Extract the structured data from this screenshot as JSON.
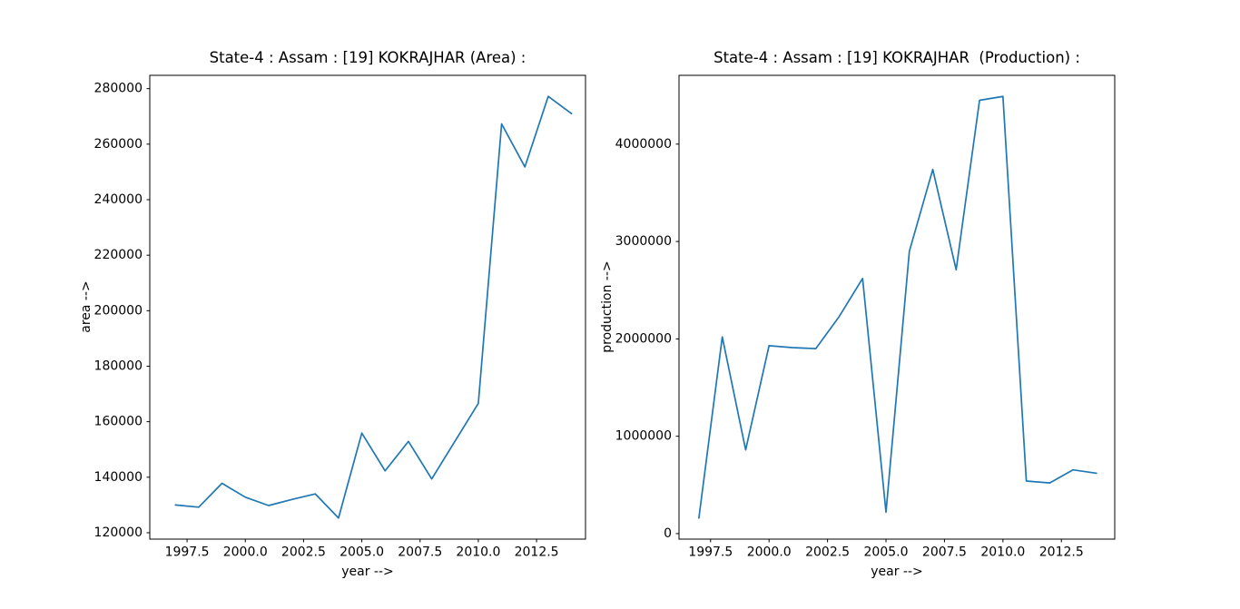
{
  "figure": {
    "background_color": "#ffffff",
    "text_color": "#000000",
    "spine_color": "#000000"
  },
  "chart_data": [
    {
      "type": "line",
      "title": "State-4 : Assam : [19] KOKRAJHAR (Area) :",
      "xlabel": "year -->",
      "ylabel": "area -->",
      "color": "#1f77b4",
      "grid": false,
      "legend": null,
      "x": [
        1997,
        1998,
        1999,
        2000,
        2001,
        2002,
        2003,
        2004,
        2005,
        2006,
        2007,
        2008,
        2009,
        2010,
        2011,
        2012,
        2013,
        2014
      ],
      "y": [
        130000,
        129200,
        137800,
        132800,
        129800,
        132000,
        134000,
        125300,
        155900,
        142300,
        152900,
        139400,
        153000,
        166600,
        267300,
        251800,
        277200,
        271000
      ],
      "xlim": [
        1995.9,
        2014.6
      ],
      "ylim": [
        117700,
        284800
      ],
      "xticks": [
        1997.5,
        2000.0,
        2002.5,
        2005.0,
        2007.5,
        2010.0,
        2012.5
      ],
      "xtick_labels": [
        "1997.5",
        "2000.0",
        "2002.5",
        "2005.0",
        "2007.5",
        "2010.0",
        "2012.5"
      ],
      "yticks": [
        120000,
        140000,
        160000,
        180000,
        200000,
        220000,
        240000,
        260000,
        280000
      ],
      "ytick_labels": [
        "120000",
        "140000",
        "160000",
        "180000",
        "200000",
        "220000",
        "240000",
        "260000",
        "280000"
      ]
    },
    {
      "type": "line",
      "title": "State-4 : Assam : [19] KOKRAJHAR  (Production) :",
      "xlabel": "year -->",
      "ylabel": "production -->",
      "color": "#1f77b4",
      "grid": false,
      "legend": null,
      "x": [
        1997,
        1998,
        1999,
        2000,
        2001,
        2002,
        2003,
        2004,
        2005,
        2006,
        2007,
        2008,
        2009,
        2010,
        2011,
        2012,
        2013,
        2014
      ],
      "y": [
        160000,
        2020000,
        860000,
        1930000,
        1910000,
        1900000,
        2230000,
        2620000,
        220000,
        2900000,
        3740000,
        2710000,
        4450000,
        4490000,
        540000,
        520000,
        655000,
        620000
      ],
      "xlim": [
        1996.15,
        2014.78
      ],
      "ylim": [
        -56500,
        4706500
      ],
      "xticks": [
        1997.5,
        2000.0,
        2002.5,
        2005.0,
        2007.5,
        2010.0,
        2012.5
      ],
      "xtick_labels": [
        "1997.5",
        "2000.0",
        "2002.5",
        "2005.0",
        "2007.5",
        "2010.0",
        "2012.5"
      ],
      "yticks": [
        0,
        1000000,
        2000000,
        3000000,
        4000000
      ],
      "ytick_labels": [
        "0",
        "1000000",
        "2000000",
        "3000000",
        "4000000"
      ]
    }
  ]
}
